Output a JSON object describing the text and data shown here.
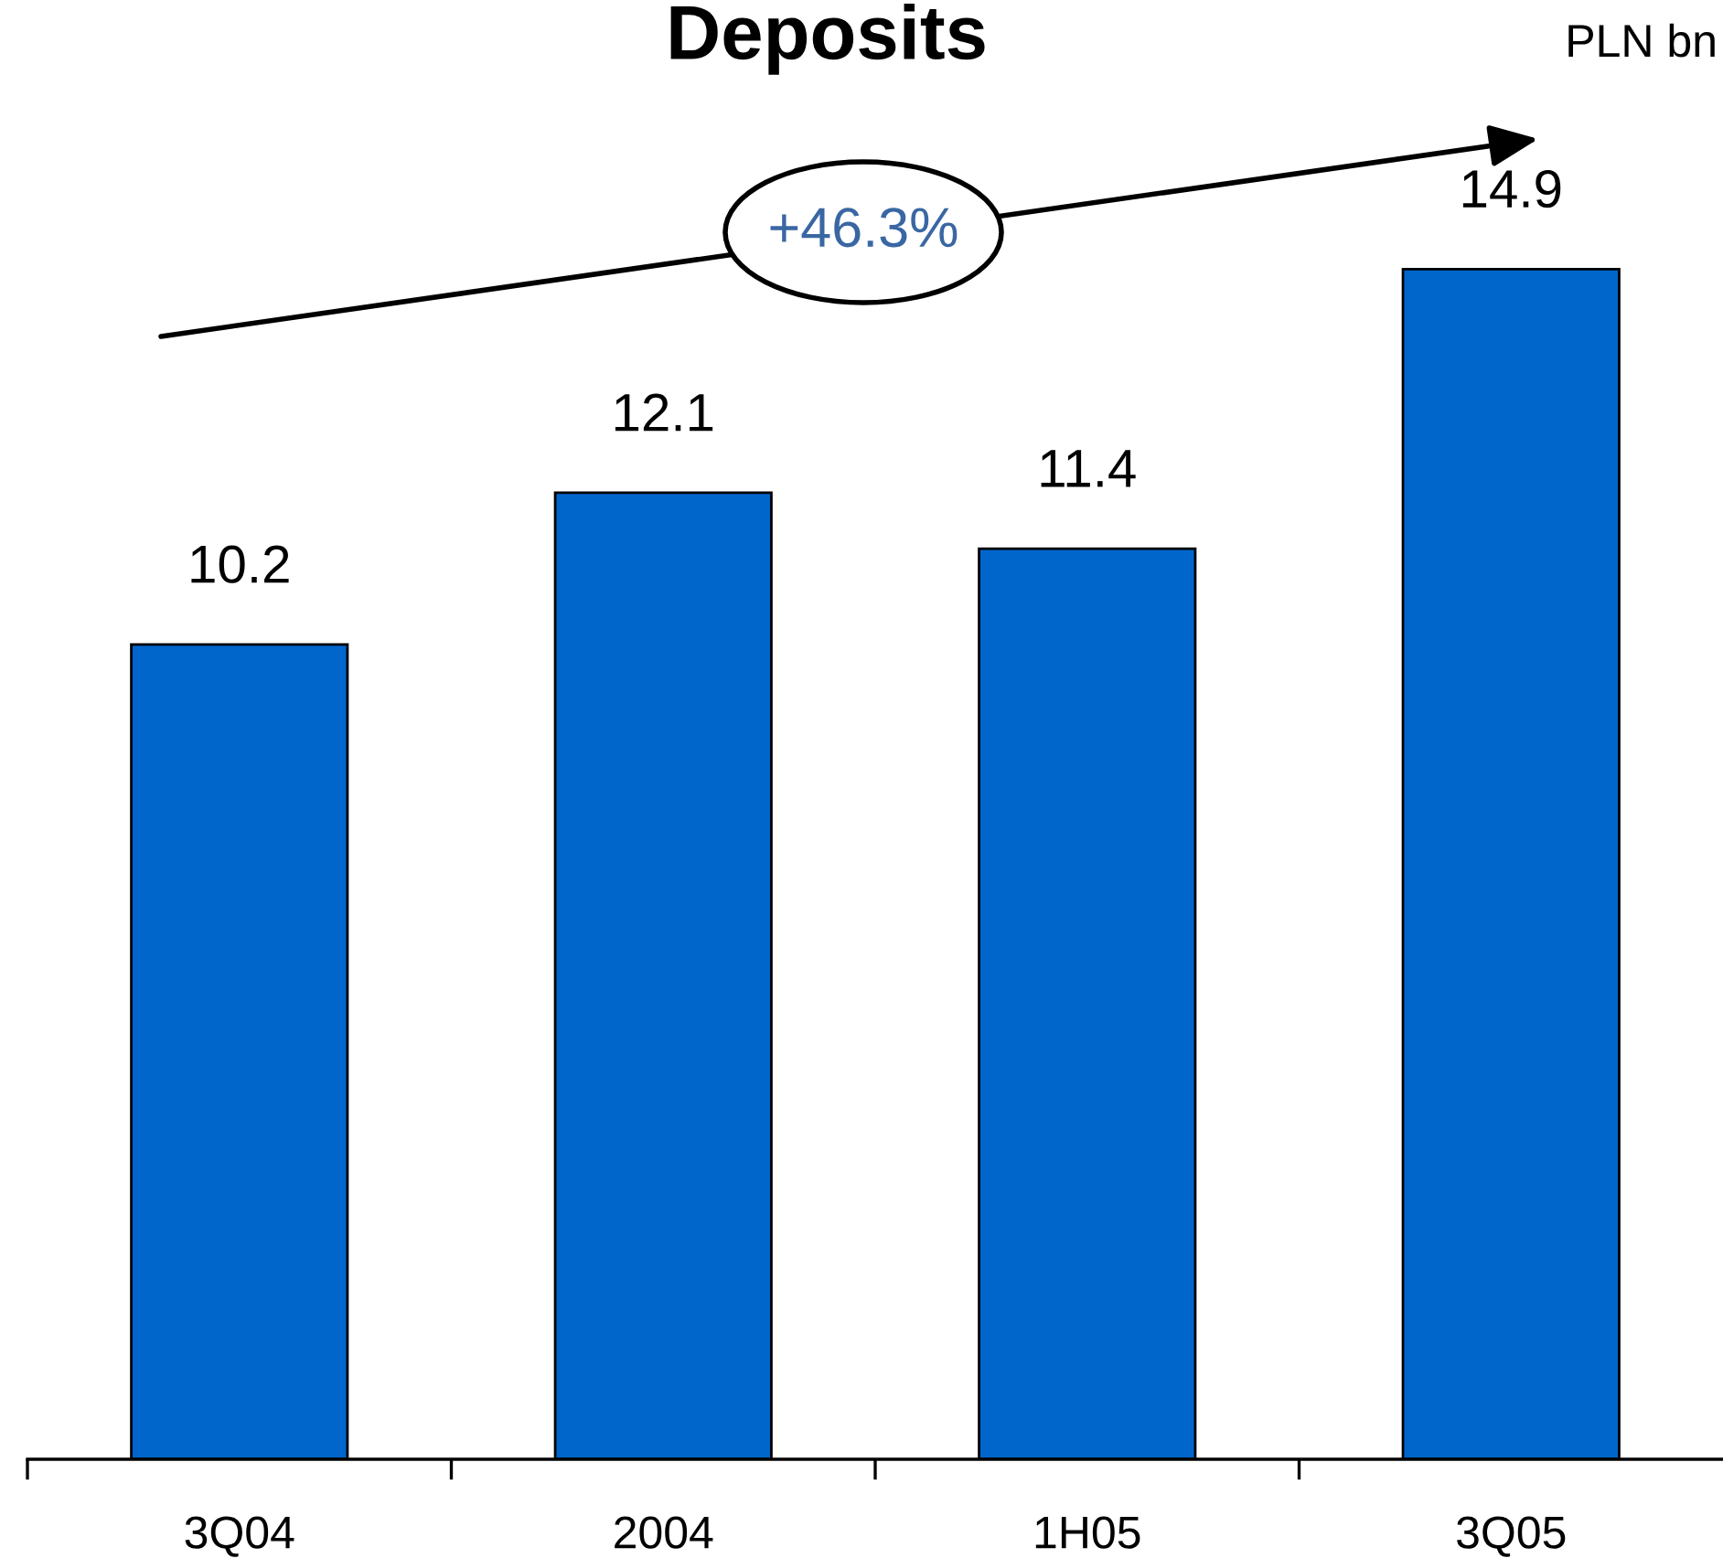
{
  "chart_data": {
    "type": "bar",
    "title": "Deposits",
    "ylabel": "PLN bn",
    "categories": [
      "3Q04",
      "2004",
      "1H05",
      "3Q05"
    ],
    "values": [
      10.2,
      12.1,
      11.4,
      14.9
    ],
    "color": "#0066cc",
    "data_labels": true,
    "annotations": [
      "+46.3%"
    ],
    "tick_labels": "x"
  }
}
